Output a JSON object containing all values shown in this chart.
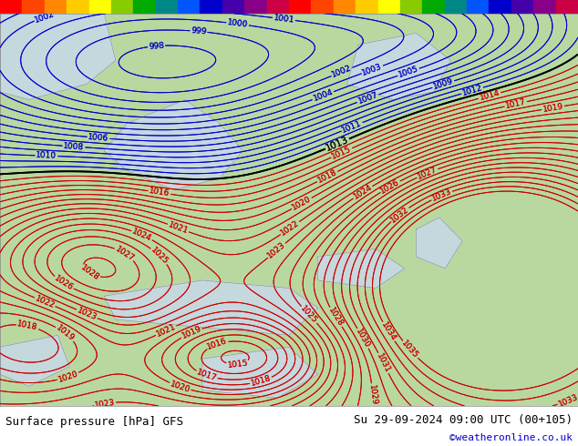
{
  "title_left": "Surface pressure [hPa] GFS",
  "title_right": "Su 29-09-2024 09:00 UTC (00+105)",
  "credit": "©weatheronline.co.uk",
  "ocean_color": "#c8d8e8",
  "land_color": "#b8d8a0",
  "border_color": "#888888",
  "blue_contour_color": "#0000cc",
  "red_contour_color": "#cc0000",
  "black_contour_color": "#000000",
  "label_fontsize": 6.5,
  "footer_fontsize": 9,
  "credit_fontsize": 8,
  "footer_color": "#000000",
  "credit_color": "#0000cc",
  "stripe_colors": [
    "#ff0000",
    "#ff4400",
    "#ff8800",
    "#ffcc00",
    "#ffff00",
    "#88cc00",
    "#00aa00",
    "#008888",
    "#0055ff",
    "#0000cc",
    "#4400aa",
    "#880088",
    "#cc0044",
    "#ff0000",
    "#ff4400",
    "#ff8800",
    "#ffcc00",
    "#ffff00",
    "#88cc00",
    "#00aa00",
    "#008888",
    "#0055ff",
    "#0000cc",
    "#4400aa",
    "#880088",
    "#cc0044"
  ],
  "fig_width": 6.34,
  "fig_height": 4.9,
  "dpi": 100
}
